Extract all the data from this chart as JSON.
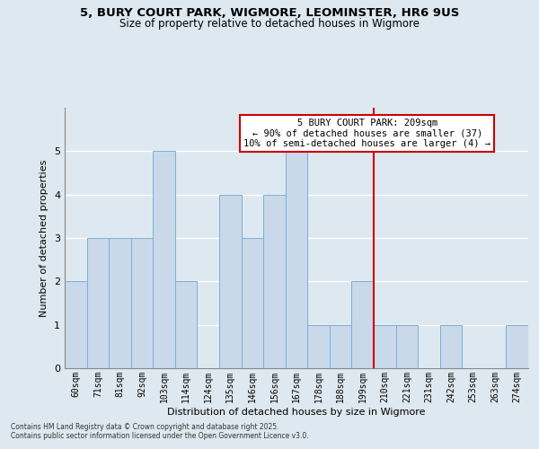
{
  "title1": "5, BURY COURT PARK, WIGMORE, LEOMINSTER, HR6 9US",
  "title2": "Size of property relative to detached houses in Wigmore",
  "xlabel": "Distribution of detached houses by size in Wigmore",
  "ylabel": "Number of detached properties",
  "categories": [
    "60sqm",
    "71sqm",
    "81sqm",
    "92sqm",
    "103sqm",
    "114sqm",
    "124sqm",
    "135sqm",
    "146sqm",
    "156sqm",
    "167sqm",
    "178sqm",
    "188sqm",
    "199sqm",
    "210sqm",
    "221sqm",
    "231sqm",
    "242sqm",
    "253sqm",
    "263sqm",
    "274sqm"
  ],
  "values": [
    2,
    3,
    3,
    3,
    5,
    2,
    0,
    4,
    3,
    4,
    5,
    1,
    1,
    2,
    1,
    1,
    0,
    1,
    0,
    0,
    1
  ],
  "bar_color": "#c9d9ea",
  "bar_edge_color": "#7bafd4",
  "vline_x_index": 14,
  "vline_color": "#cc0000",
  "annotation_title": "5 BURY COURT PARK: 209sqm",
  "annotation_line1": "← 90% of detached houses are smaller (37)",
  "annotation_line2": "10% of semi-detached houses are larger (4) →",
  "annotation_box_color": "#cc0000",
  "ylim": [
    0,
    6.0
  ],
  "yticks": [
    0,
    1,
    2,
    3,
    4,
    5
  ],
  "background_color": "#dde8f0",
  "plot_bg_color": "#dde8f0",
  "grid_color": "#ffffff",
  "footer1": "Contains HM Land Registry data © Crown copyright and database right 2025.",
  "footer2": "Contains public sector information licensed under the Open Government Licence v3.0."
}
